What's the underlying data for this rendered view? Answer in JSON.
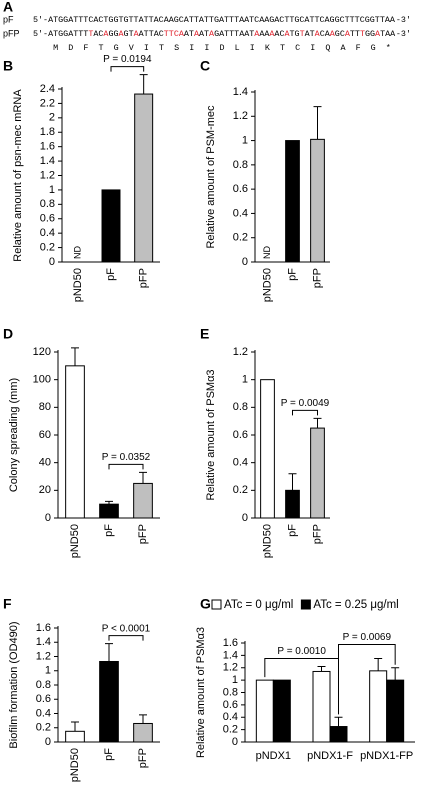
{
  "panel_a": {
    "label": "A",
    "lines": [
      {
        "name": "pF",
        "prefix": "5'-",
        "sequence": "ATGGATTTCACTGGTGTTATTACAAGCATTATTGATTTAATCAAGACTTGCATTCAGGCTTTCGGTTAA",
        "suffix": "-3'"
      },
      {
        "name": "pFP",
        "prefix": "5'-",
        "sequence": "ATGGATTTTACAGGAGTAATTACTTCAATAATAGATTTAATAAAAACATGTATACAAGCATTTGGATAA",
        "suffix": "-3'"
      }
    ],
    "amino_acids": [
      "M",
      "D",
      "F",
      "T",
      "G",
      "V",
      "I",
      "T",
      "S",
      "I",
      "I",
      "D",
      "L",
      "I",
      "K",
      "T",
      "C",
      "I",
      "Q",
      "A",
      "F",
      "G",
      "*"
    ]
  },
  "chart_data": [
    {
      "type": "bar",
      "label": "B",
      "ylabel": "Relative amount of psn-mec mRNA",
      "categories": [
        "pND50",
        "pF",
        "pFP"
      ],
      "values": [
        null,
        1,
        2.33
      ],
      "errors": [
        null,
        null,
        0.27
      ],
      "value_labels": [
        "ND",
        null,
        null
      ],
      "colors": [
        "#ffffff",
        "#000000",
        "#bfbfbf"
      ],
      "ylim": [
        0,
        2.4
      ],
      "yticks": [
        0,
        0.2,
        0.4,
        0.6,
        0.8,
        1,
        1.2,
        1.4,
        1.6,
        1.8,
        2,
        2.2,
        2.4
      ],
      "annotations": [
        {
          "text": "P = 0.0194",
          "between": [
            "pF",
            "pFP"
          ]
        }
      ]
    },
    {
      "type": "bar",
      "label": "C",
      "ylabel": "Relative amount of PSM-mec",
      "categories": [
        "pND50",
        "pF",
        "pFP"
      ],
      "values": [
        null,
        1,
        1.01
      ],
      "errors": [
        null,
        null,
        0.27
      ],
      "value_labels": [
        "ND",
        null,
        null
      ],
      "colors": [
        "#ffffff",
        "#000000",
        "#bfbfbf"
      ],
      "ylim": [
        0,
        1.4
      ],
      "yticks": [
        0,
        0.2,
        0.4,
        0.6,
        0.8,
        1,
        1.2,
        1.4
      ],
      "annotations": []
    },
    {
      "type": "bar",
      "label": "D",
      "ylabel": "Colony spreading (mm)",
      "categories": [
        "pND50",
        "pF",
        "pFP"
      ],
      "values": [
        110,
        10,
        25
      ],
      "errors": [
        13,
        2,
        8
      ],
      "colors": [
        "#ffffff",
        "#000000",
        "#bfbfbf"
      ],
      "ylim": [
        0,
        120
      ],
      "yticks": [
        0,
        20,
        40,
        60,
        80,
        100,
        120
      ],
      "annotations": [
        {
          "text": "P = 0.0352",
          "between": [
            "pF",
            "pFP"
          ]
        }
      ]
    },
    {
      "type": "bar",
      "label": "E",
      "ylabel": "Relative amount of PSMα3",
      "categories": [
        "pND50",
        "pF",
        "pFP"
      ],
      "values": [
        1,
        0.2,
        0.65
      ],
      "errors": [
        null,
        0.12,
        0.07
      ],
      "colors": [
        "#ffffff",
        "#000000",
        "#bfbfbf"
      ],
      "ylim": [
        0,
        1.2
      ],
      "yticks": [
        0,
        0.2,
        0.4,
        0.6,
        0.8,
        1,
        1.2
      ],
      "annotations": [
        {
          "text": "P = 0.0049",
          "between": [
            "pF",
            "pFP"
          ]
        }
      ]
    },
    {
      "type": "bar",
      "label": "F",
      "ylabel": "Biofilm formation (OD490)",
      "categories": [
        "pND50",
        "pF",
        "pFP"
      ],
      "values": [
        0.15,
        1.13,
        0.26
      ],
      "errors": [
        0.13,
        0.25,
        0.12
      ],
      "colors": [
        "#ffffff",
        "#000000",
        "#bfbfbf"
      ],
      "ylim": [
        0,
        1.6
      ],
      "yticks": [
        0,
        0.2,
        0.4,
        0.6,
        0.8,
        1,
        1.2,
        1.4,
        1.6
      ],
      "annotations": [
        {
          "text": "P < 0.0001",
          "between": [
            "pF",
            "pFP"
          ]
        }
      ]
    },
    {
      "type": "grouped_bar",
      "label": "G",
      "ylabel": "Relative amount of PSMα3",
      "categories": [
        "pNDX1",
        "pNDX1-F",
        "pNDX1-FP"
      ],
      "series": [
        {
          "name": "ATc = 0 μg/ml",
          "color": "#ffffff",
          "values": [
            1,
            1.14,
            1.15
          ],
          "errors": [
            null,
            0.08,
            0.2
          ]
        },
        {
          "name": "ATc = 0.25 μg/ml",
          "color": "#000000",
          "values": [
            1,
            0.25,
            1.0
          ],
          "errors": [
            null,
            0.15,
            0.2
          ]
        }
      ],
      "ylim": [
        0,
        1.6
      ],
      "yticks": [
        0,
        0.2,
        0.4,
        0.6,
        0.8,
        1,
        1.2,
        1.4,
        1.6
      ],
      "annotations": [
        {
          "text": "P = 0.0010",
          "between": [
            [
              "pNDX1",
              "ATc = 0 μg/ml"
            ],
            [
              "pNDX1-F",
              "ATc = 0.25 μg/ml"
            ]
          ]
        },
        {
          "text": "P = 0.0069",
          "between": [
            [
              "pNDX1-F",
              "ATc = 0.25 μg/ml"
            ],
            [
              "pNDX1-FP",
              "ATc = 0.25 μg/ml"
            ]
          ]
        }
      ]
    }
  ]
}
